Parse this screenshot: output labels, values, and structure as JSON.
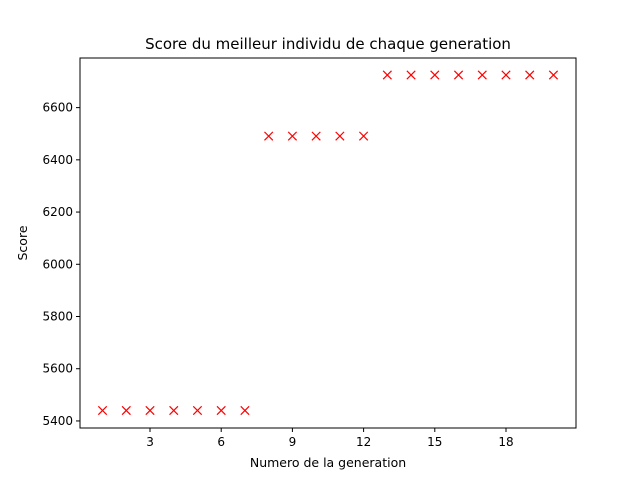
{
  "chart_data": {
    "type": "scatter",
    "title": "Score du meilleur individu de chaque generation",
    "xlabel": "Numero de la generation",
    "ylabel": "Score",
    "xlim": [
      0.05,
      20.95
    ],
    "ylim": [
      5373,
      6790
    ],
    "xticks": [
      3,
      6,
      9,
      12,
      15,
      18
    ],
    "yticks": [
      5400,
      5600,
      5800,
      6000,
      6200,
      6400,
      6600
    ],
    "grid": false,
    "marker": "x",
    "marker_color": "#ff0000",
    "series": [
      {
        "x": [
          1,
          2,
          3,
          4,
          5,
          6,
          7,
          8,
          9,
          10,
          11,
          12,
          13,
          14,
          15,
          16,
          17,
          18,
          19,
          20
        ],
        "y": [
          5440,
          5440,
          5440,
          5440,
          5440,
          5440,
          5440,
          6491,
          6491,
          6491,
          6491,
          6491,
          6725,
          6725,
          6725,
          6725,
          6725,
          6725,
          6725,
          6725
        ]
      }
    ]
  }
}
